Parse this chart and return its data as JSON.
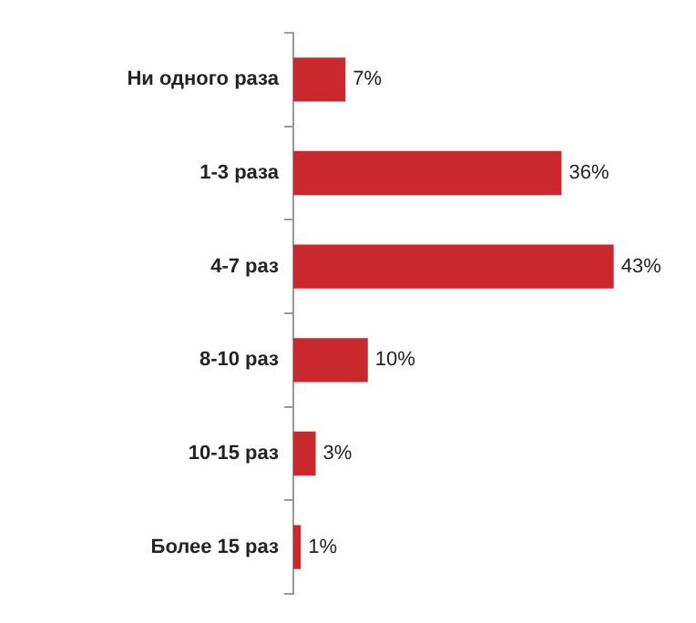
{
  "chart_data": {
    "type": "bar",
    "orientation": "horizontal",
    "categories": [
      "Ни одного раза",
      "1-3 раза",
      "4-7 раз",
      "8-10 раз",
      "10-15 раз",
      "Более 15 раз"
    ],
    "values": [
      7,
      36,
      43,
      10,
      3,
      1
    ],
    "value_labels": [
      "7%",
      "36%",
      "43%",
      "10%",
      "3%",
      "1%"
    ],
    "color": "#c9282d",
    "grid": false,
    "legend": false
  }
}
